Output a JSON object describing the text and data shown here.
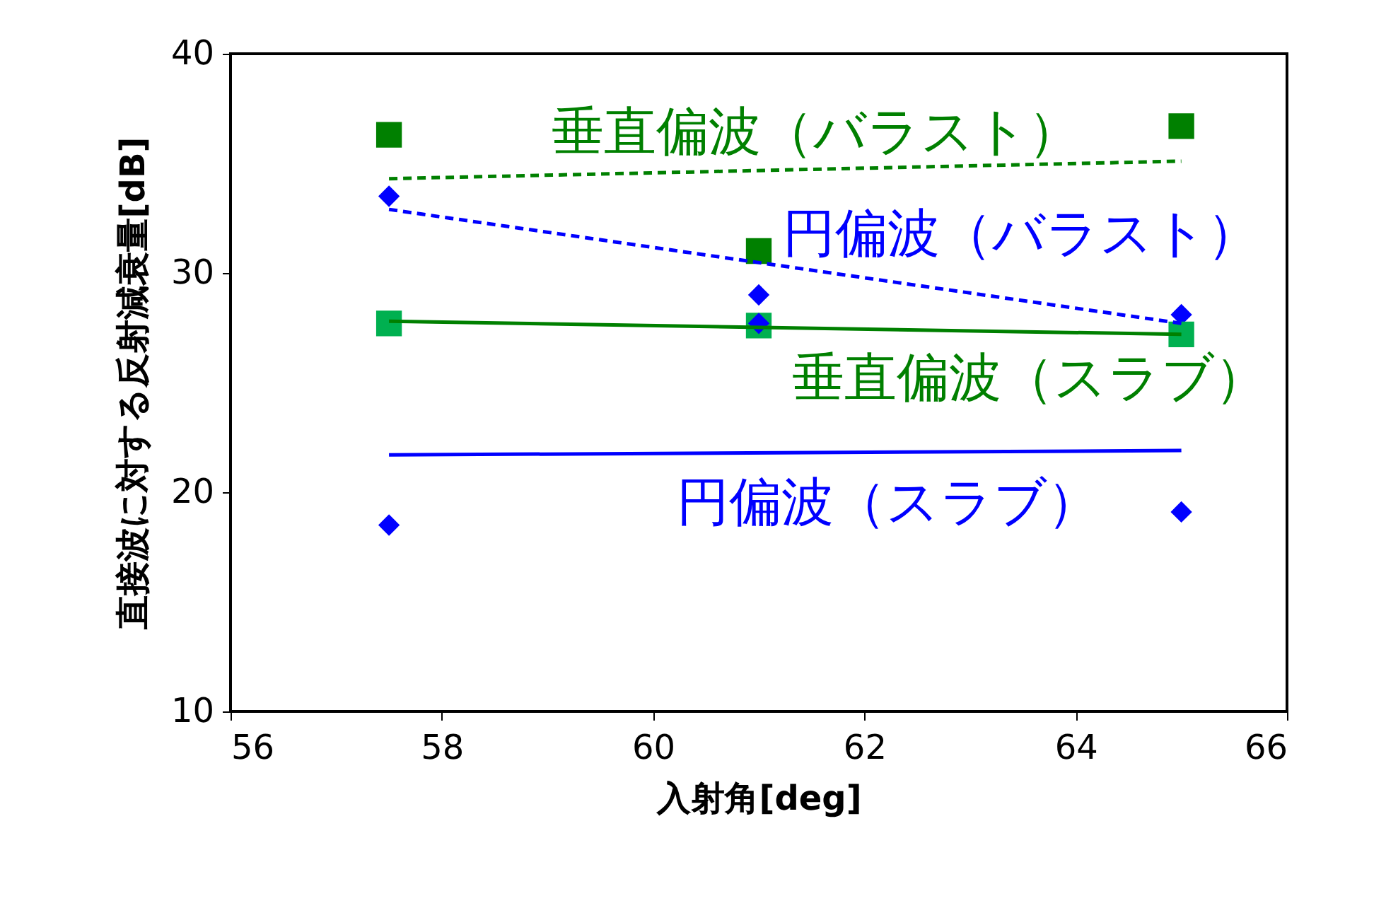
{
  "chart_data": {
    "type": "scatter",
    "xlabel": "入射角[deg]",
    "ylabel": "直接波に対する反射減衰量[dB]",
    "xlim": [
      56,
      66
    ],
    "xticks": [
      56,
      58,
      60,
      62,
      64,
      66
    ],
    "ylim": [
      10,
      40
    ],
    "yticks": [
      10,
      20,
      30,
      40
    ],
    "grid": false,
    "series": [
      {
        "marker": "square",
        "color": "#008000",
        "x": [
          57.5,
          61,
          65
        ],
        "values": [
          36.3,
          31.0,
          36.7
        ]
      },
      {
        "marker": "diamond",
        "color": "#0000ff",
        "x": [
          57.5,
          61,
          65
        ],
        "values": [
          33.5,
          29.0,
          28.1
        ]
      },
      {
        "marker": "square",
        "color": "#00b050",
        "x": [
          57.5,
          61,
          65
        ],
        "values": [
          27.7,
          27.6,
          27.2
        ]
      },
      {
        "marker": "diamond",
        "color": "#0000ff",
        "x": [
          57.5,
          61,
          65
        ],
        "values": [
          18.5,
          27.7,
          19.1
        ]
      },
      {
        "type": "line",
        "line_style": "dashed",
        "color": "#008000",
        "x": [
          57.5,
          65
        ],
        "values": [
          34.3,
          35.1
        ]
      },
      {
        "type": "line",
        "line_style": "dashed",
        "color": "#0000ff",
        "x": [
          57.5,
          65
        ],
        "values": [
          32.9,
          27.7
        ]
      },
      {
        "type": "line",
        "line_style": "solid",
        "color": "#008000",
        "x": [
          57.5,
          65
        ],
        "values": [
          27.8,
          27.2
        ]
      },
      {
        "type": "line",
        "line_style": "solid",
        "color": "#0000ff",
        "x": [
          57.5,
          65
        ],
        "values": [
          21.7,
          21.9
        ]
      }
    ],
    "annotations": [
      "垂直偏波（バラスト）",
      "円偏波（バラスト）",
      "垂直偏波（スラブ）",
      "円偏波（スラブ）"
    ]
  }
}
